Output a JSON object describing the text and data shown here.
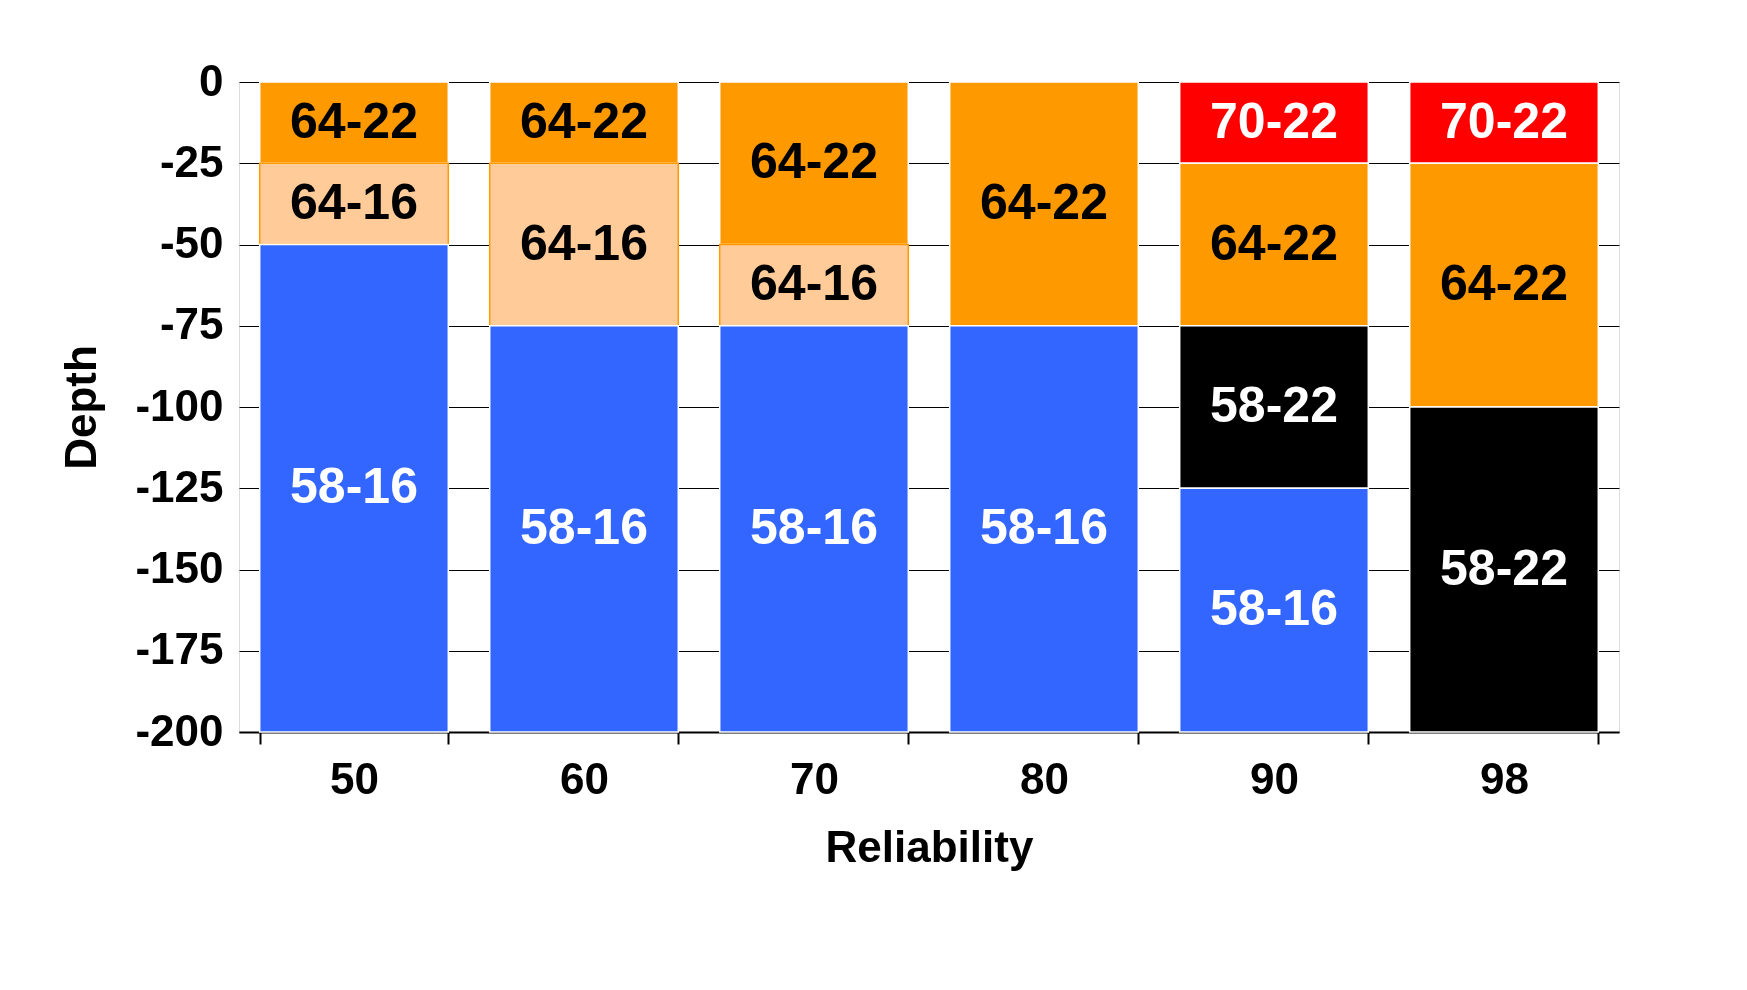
{
  "chart_data": {
    "type": "bar",
    "stacked": true,
    "xlabel": "Reliability",
    "ylabel": "Depth",
    "categories": [
      "50",
      "60",
      "70",
      "80",
      "90",
      "98"
    ],
    "series": [
      {
        "name": "70-22",
        "color": "#ff0000",
        "values": [
          null,
          null,
          null,
          null,
          -25,
          -25
        ]
      },
      {
        "name": "64-22",
        "color": "#ff9900",
        "values": [
          -25,
          -25,
          -50,
          -75,
          -50,
          -75
        ]
      },
      {
        "name": "64-16",
        "color": "#ffcc99",
        "values": [
          -25,
          -50,
          -25,
          null,
          null,
          null
        ]
      },
      {
        "name": "58-22",
        "color": "#000000",
        "values": [
          null,
          null,
          null,
          null,
          -50,
          -100
        ]
      },
      {
        "name": "58-16",
        "color": "#3366ff",
        "values": [
          -150,
          -125,
          -125,
          -125,
          -75,
          null
        ]
      }
    ],
    "ylim": [
      -200,
      0
    ],
    "yticks": [
      0,
      -25,
      -50,
      -75,
      -100,
      -125,
      -150,
      -175,
      -200
    ],
    "grid": "y"
  }
}
